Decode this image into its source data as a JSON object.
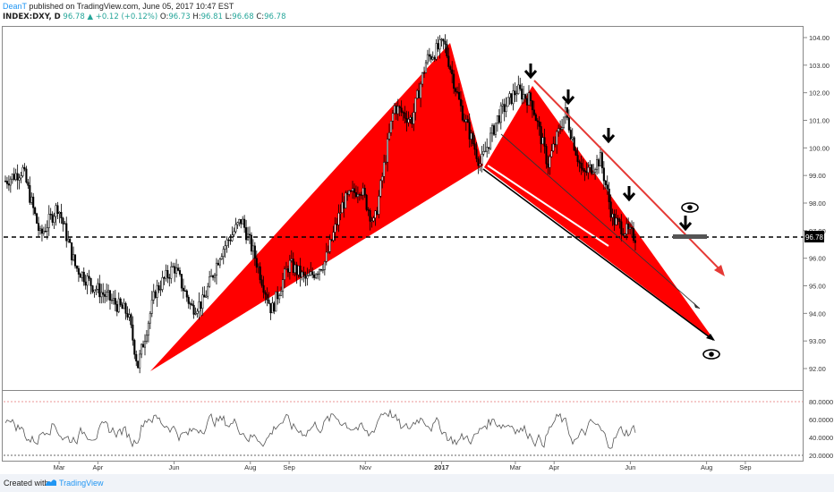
{
  "header": {
    "author": "DeanT",
    "published": "published on TradingView.com, June 05, 2017 10:47 EST",
    "symbol": "INDEX:DXY, D",
    "price": "96.78",
    "change": "▲ +0.12 (+0.12%)",
    "o_label": "O:",
    "o_value": "96.73",
    "h_label": "H:",
    "h_value": "96.81",
    "l_label": "L:",
    "l_value": "96.68",
    "c_label": "C:",
    "c_value": "96.78"
  },
  "footer": {
    "created_with": "Created with",
    "brand": "TradingView"
  },
  "colors": {
    "pattern": "#ff0000",
    "candle": "#000000",
    "price_line": "#000000",
    "rsi_line": "#555555",
    "rsi_upper": "#e57373",
    "rsi_lower": "#333333",
    "arrow_red": "#e53935"
  },
  "chart_data": {
    "type": "candlestick",
    "price_axis": {
      "ticks": [
        104,
        103,
        102,
        101,
        100,
        99,
        98,
        97,
        96,
        95,
        94,
        93,
        92
      ],
      "tick_labels": [
        "104.00",
        "103.00",
        "102.00",
        "101.00",
        "100.00",
        "99.00",
        "98.00",
        "97.00",
        "96.00",
        "95.00",
        "94.00",
        "93.00",
        "92.00"
      ],
      "range": [
        91.5,
        104.2
      ],
      "current_price": 96.78,
      "current_label": "96.78"
    },
    "time_axis": {
      "labels": [
        "Mar",
        "Apr",
        "Jun",
        "Aug",
        "Sep",
        "Nov",
        "2017",
        "Mar",
        "Apr",
        "Jun",
        "Aug",
        "Sep"
      ],
      "bold": [
        "2017"
      ]
    },
    "price_path": [
      [
        "2016-01-18",
        98.8
      ],
      [
        "2016-02-01",
        99.2
      ],
      [
        "2016-02-15",
        96.8
      ],
      [
        "2016-02-29",
        97.9
      ],
      [
        "2016-03-14",
        95.7
      ],
      [
        "2016-03-28",
        95.0
      ],
      [
        "2016-04-11",
        94.5
      ],
      [
        "2016-04-25",
        94.0
      ],
      [
        "2016-05-03",
        92.1
      ],
      [
        "2016-05-17",
        94.8
      ],
      [
        "2016-06-01",
        95.7
      ],
      [
        "2016-06-15",
        94.2
      ],
      [
        "2016-06-24",
        94.4
      ],
      [
        "2016-07-08",
        96.2
      ],
      [
        "2016-07-25",
        97.4
      ],
      [
        "2016-08-05",
        96.0
      ],
      [
        "2016-08-18",
        94.1
      ],
      [
        "2016-09-01",
        95.8
      ],
      [
        "2016-09-15",
        95.2
      ],
      [
        "2016-09-30",
        95.9
      ],
      [
        "2016-10-14",
        98.0
      ],
      [
        "2016-10-28",
        98.6
      ],
      [
        "2016-11-08",
        97.2
      ],
      [
        "2016-11-24",
        101.5
      ],
      [
        "2016-12-08",
        101.0
      ],
      [
        "2016-12-20",
        103.2
      ],
      [
        "2017-01-03",
        103.8
      ],
      [
        "2017-01-16",
        101.5
      ],
      [
        "2017-02-01",
        99.4
      ],
      [
        "2017-02-15",
        101.1
      ],
      [
        "2017-03-02",
        102.1
      ],
      [
        "2017-03-14",
        101.7
      ],
      [
        "2017-03-27",
        99.4
      ],
      [
        "2017-04-10",
        101.3
      ],
      [
        "2017-04-24",
        99.0
      ],
      [
        "2017-05-08",
        99.6
      ],
      [
        "2017-05-18",
        97.4
      ],
      [
        "2017-05-31",
        96.9
      ],
      [
        "2017-06-05",
        96.78
      ]
    ],
    "rsi": {
      "levels": [
        80,
        60,
        40,
        20
      ],
      "level_labels": [
        "80.0000",
        "60.0000",
        "40.0000",
        "20.0000"
      ],
      "range": [
        15,
        88
      ],
      "upper_band": 80,
      "lower_band": 20
    },
    "annotations": [
      "harmonic pattern XA leg (red filled)",
      "harmonic pattern second wedge (red filled)",
      "red descending arrow",
      "black arrow to target",
      "eye icon near 97",
      "eye icon at target near 92.5"
    ]
  }
}
